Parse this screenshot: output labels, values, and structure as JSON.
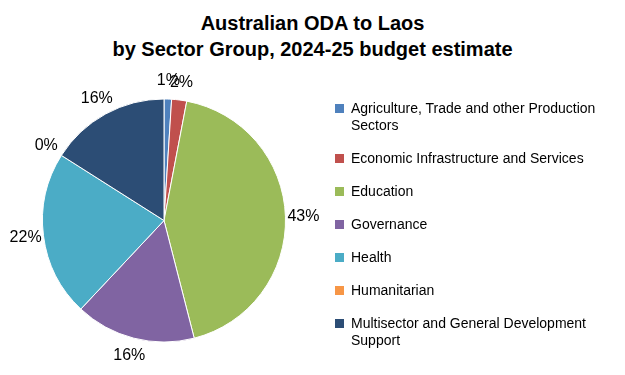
{
  "chart_data": {
    "type": "pie",
    "title": [
      "Australian ODA to Laos",
      "by Sector Group, 2024-25 budget estimate"
    ],
    "categories": [
      "Agriculture, Trade and other Production Sectors",
      "Economic Infrastructure and Services",
      "Education",
      "Governance",
      "Health",
      "Humanitarian",
      "Multisector and General Development Support"
    ],
    "values": [
      1,
      2,
      43,
      16,
      22,
      0,
      16
    ],
    "value_labels": [
      "1%",
      "2%",
      "43%",
      "16%",
      "22%",
      "0%",
      "16%"
    ],
    "colors": [
      "#4f81bd",
      "#c0504d",
      "#9bbb59",
      "#8064a2",
      "#4bacc6",
      "#f79646",
      "#2c4d75"
    ],
    "legend": "right",
    "data_labels": true
  }
}
